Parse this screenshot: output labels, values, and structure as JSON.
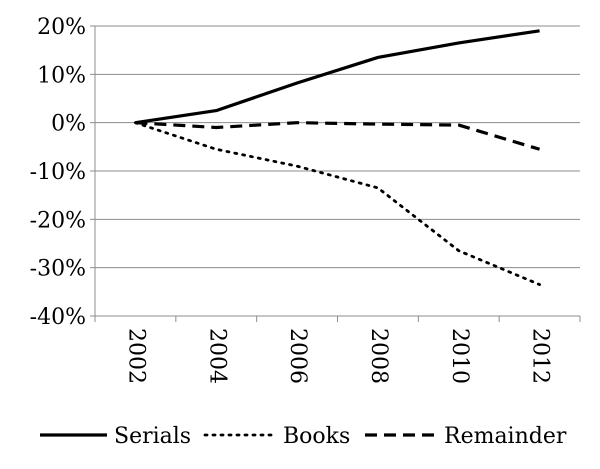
{
  "chart_data": {
    "type": "line",
    "title": "",
    "xlabel": "",
    "ylabel": "",
    "x": [
      "2002",
      "2004",
      "2006",
      "2008",
      "2010",
      "2012"
    ],
    "ylim": [
      -40,
      20
    ],
    "yticks": [
      "20%",
      "10%",
      "0%",
      "-10%",
      "-20%",
      "-30%",
      "-40%"
    ],
    "ytick_values": [
      20,
      10,
      0,
      -10,
      -20,
      -30,
      -40
    ],
    "grid": "horizontal",
    "legend_placement": "bottom",
    "series": [
      {
        "name": "Serials",
        "style": "solid",
        "color": "#000000",
        "values": [
          0,
          2.5,
          8.2,
          13.5,
          16.5,
          19.0
        ]
      },
      {
        "name": "Books",
        "style": "dotted",
        "color": "#000000",
        "values": [
          0,
          -5.5,
          -9.0,
          -13.5,
          -26.5,
          -33.5
        ]
      },
      {
        "name": "Remainder",
        "style": "dashed",
        "color": "#000000",
        "values": [
          0,
          -1.0,
          0.0,
          -0.3,
          -0.5,
          -5.5
        ]
      }
    ]
  }
}
